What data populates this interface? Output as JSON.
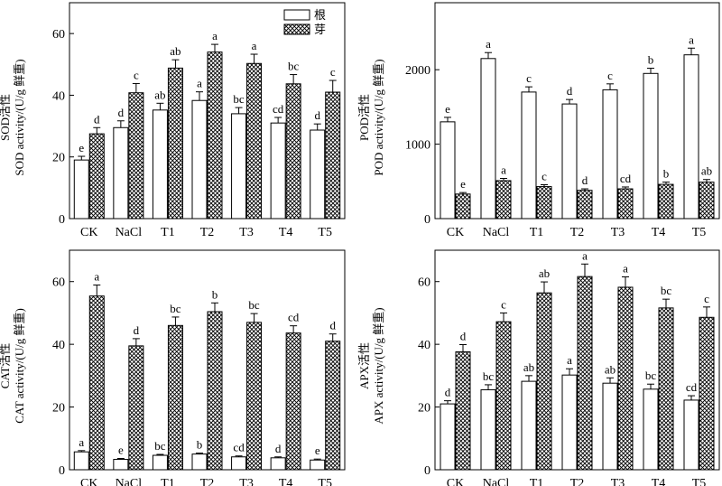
{
  "legend": [
    {
      "label": "根",
      "pattern": "white"
    },
    {
      "label": "芽",
      "pattern": "crosshatch"
    }
  ],
  "chart_data": [
    {
      "type": "bar",
      "ylabel_cn": "SOD活性",
      "ylabel_en": "SOD activity/(U/g 鲜重)",
      "ylim": [
        0,
        70
      ],
      "yticks": [
        0,
        20,
        40,
        60
      ],
      "categories": [
        "CK",
        "NaCl",
        "T1",
        "T2",
        "T3",
        "T4",
        "T5"
      ],
      "series": [
        {
          "name": "根",
          "values": [
            19,
            29.5,
            35.2,
            38.3,
            34,
            31,
            28.7
          ],
          "errors": [
            1.2,
            2.2,
            2.2,
            2.8,
            2,
            1.8,
            2
          ],
          "letters": [
            "e",
            "d",
            "ab",
            "a",
            "bc",
            "cd",
            "d"
          ]
        },
        {
          "name": "芽",
          "values": [
            27.5,
            40.8,
            48.8,
            54,
            50.3,
            43.7,
            41
          ],
          "errors": [
            2,
            3,
            2.7,
            2.5,
            3,
            3,
            3.8
          ],
          "letters": [
            "d",
            "c",
            "ab",
            "a",
            "a",
            "bc",
            "c"
          ]
        }
      ]
    },
    {
      "type": "bar",
      "ylabel_cn": "POD活性",
      "ylabel_en": "POD activity/(U/g 鲜重)",
      "ylim": [
        0,
        2900
      ],
      "yticks": [
        0,
        1000,
        2000
      ],
      "categories": [
        "CK",
        "NaCl",
        "T1",
        "T2",
        "T3",
        "T4",
        "T5"
      ],
      "series": [
        {
          "name": "根",
          "values": [
            1300,
            2150,
            1700,
            1540,
            1730,
            1950,
            2200
          ],
          "errors": [
            60,
            80,
            70,
            60,
            80,
            70,
            90
          ],
          "letters": [
            "e",
            "a",
            "c",
            "d",
            "c",
            "b",
            "a"
          ]
        },
        {
          "name": "芽",
          "values": [
            330,
            510,
            430,
            380,
            400,
            460,
            490
          ],
          "errors": [
            20,
            30,
            25,
            20,
            25,
            30,
            35
          ],
          "letters": [
            "e",
            "a",
            "c",
            "d",
            "cd",
            "b",
            "ab"
          ]
        }
      ]
    },
    {
      "type": "bar",
      "ylabel_cn": "CAT活性",
      "ylabel_en": "CAT activity/(U/g 鲜重)",
      "ylim": [
        0,
        70
      ],
      "yticks": [
        0,
        20,
        40,
        60
      ],
      "categories": [
        "CK",
        "NaCl",
        "T1",
        "T2",
        "T3",
        "T4",
        "T5"
      ],
      "series": [
        {
          "name": "根",
          "values": [
            5.7,
            3.3,
            4.6,
            5,
            4.1,
            3.8,
            3.1
          ],
          "errors": [
            0.4,
            0.3,
            0.3,
            0.3,
            0.3,
            0.3,
            0.3
          ],
          "letters": [
            "a",
            "e",
            "bc",
            "b",
            "cd",
            "d",
            "e"
          ]
        },
        {
          "name": "芽",
          "values": [
            55.4,
            39.5,
            46,
            50.4,
            47,
            43.6,
            41
          ],
          "errors": [
            3.5,
            2.3,
            2.7,
            2.8,
            2.8,
            2.3,
            2.3
          ],
          "letters": [
            "a",
            "d",
            "bc",
            "b",
            "bc",
            "cd",
            "d"
          ]
        }
      ]
    },
    {
      "type": "bar",
      "ylabel_cn": "APX活性",
      "ylabel_en": "APX activity/(U/g 鲜重)",
      "ylim": [
        0,
        70
      ],
      "yticks": [
        0,
        20,
        40,
        60
      ],
      "categories": [
        "CK",
        "NaCl",
        "T1",
        "T2",
        "T3",
        "T4",
        "T5"
      ],
      "series": [
        {
          "name": "根",
          "values": [
            21,
            25.5,
            28.2,
            30.2,
            27.6,
            25.7,
            22.2
          ],
          "errors": [
            1,
            1.6,
            1.8,
            2,
            1.7,
            1.6,
            1.4
          ],
          "letters": [
            "d",
            "bc",
            "ab",
            "a",
            "ab",
            "bc",
            "cd"
          ]
        },
        {
          "name": "芽",
          "values": [
            37.6,
            47.2,
            56.4,
            61.6,
            58.2,
            51.6,
            48.6
          ],
          "errors": [
            2.3,
            2.8,
            3.5,
            4,
            3.3,
            2.8,
            3.3
          ],
          "letters": [
            "d",
            "c",
            "ab",
            "a",
            "a",
            "bc",
            "c"
          ]
        }
      ]
    }
  ]
}
